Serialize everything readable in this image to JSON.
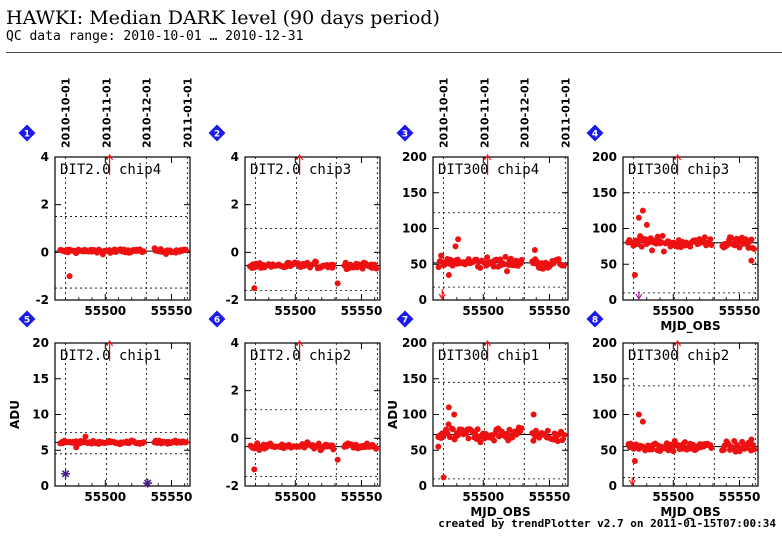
{
  "header": {
    "title": "HAWKI: Median DARK level (90 days period)",
    "subtitle": "QC data range: 2010-10-01 … 2010-12-31"
  },
  "footer": "created by trendPlotter v2.7 on 2011-01-15T07:00:34",
  "colors": {
    "points": "#ee1111",
    "badge": "#1a1aee",
    "marker_arrow": "#ee1111",
    "outlier_star": "#4b1a8c",
    "outlier_arrow": "#aa22aa"
  },
  "date_ticks": [
    {
      "label": "2010-10-01",
      "mjd": 55470
    },
    {
      "label": "2010-11-01",
      "mjd": 55501
    },
    {
      "label": "2010-12-01",
      "mjd": 55531
    },
    {
      "label": "2011-01-01",
      "mjd": 55562
    }
  ],
  "chart_data": [
    {
      "badge": "1",
      "type": "scatter",
      "label": "DIT2.0 chip4",
      "xlim": [
        55462,
        55564
      ],
      "ylim": [
        -2,
        4
      ],
      "yticks": [
        -2,
        0,
        2,
        4
      ],
      "xticks": [
        55500,
        55550
      ],
      "median": 0.05,
      "thresholds": [
        -1.5,
        1.5
      ],
      "xlabel": "",
      "ylabel": "",
      "level": 0.05,
      "noise": 0.09,
      "outliers": [
        {
          "x": 55473,
          "y": -1.0
        }
      ],
      "below_range": []
    },
    {
      "badge": "2",
      "type": "scatter",
      "label": "DIT2.0 chip3",
      "xlim": [
        55462,
        55564
      ],
      "ylim": [
        -2,
        4
      ],
      "yticks": [
        -2,
        0,
        2,
        4
      ],
      "xticks": [
        55500,
        55550
      ],
      "median": -0.55,
      "thresholds": [
        -1.6,
        1.0
      ],
      "xlabel": "",
      "ylabel": "",
      "level": -0.55,
      "noise": 0.12,
      "outliers": [
        {
          "x": 55469,
          "y": -1.5
        },
        {
          "x": 55532,
          "y": -1.3
        }
      ],
      "below_range": []
    },
    {
      "badge": "3",
      "type": "scatter",
      "label": "DIT300 chip4",
      "xlim": [
        55462,
        55564
      ],
      "ylim": [
        0,
        200
      ],
      "yticks": [
        0,
        50,
        100,
        150,
        200
      ],
      "xticks": [
        55500,
        55550
      ],
      "median": 52,
      "thresholds": [
        18,
        122
      ],
      "xlabel": "",
      "ylabel": "",
      "level": 52,
      "noise": 7,
      "outliers": [
        {
          "x": 55481,
          "y": 85
        },
        {
          "x": 55479,
          "y": 75
        },
        {
          "x": 55474,
          "y": 35
        },
        {
          "x": 55539,
          "y": 70
        }
      ],
      "below_range": [
        {
          "x": 55469,
          "y": 15
        }
      ]
    },
    {
      "badge": "4",
      "type": "scatter",
      "label": "DIT300 chip3",
      "xlim": [
        55462,
        55564
      ],
      "ylim": [
        0,
        200
      ],
      "yticks": [
        0,
        50,
        100,
        150,
        200
      ],
      "xticks": [
        55500,
        55550
      ],
      "median": 80,
      "thresholds": [
        10,
        150
      ],
      "xlabel": "MJD_OBS",
      "ylabel": "",
      "level": 80,
      "noise": 8,
      "outliers": [
        {
          "x": 55477,
          "y": 125
        },
        {
          "x": 55474,
          "y": 115
        },
        {
          "x": 55471,
          "y": 35
        },
        {
          "x": 55480,
          "y": 105
        },
        {
          "x": 55559,
          "y": 55
        }
      ],
      "below_range": [
        {
          "x": 55474,
          "y": 12
        }
      ]
    },
    {
      "badge": "5",
      "type": "scatter",
      "label": "DIT2.0 chip1",
      "xlim": [
        55462,
        55564
      ],
      "ylim": [
        0,
        20
      ],
      "yticks": [
        0,
        5,
        10,
        15,
        20
      ],
      "xticks": [
        55500,
        55550
      ],
      "median": 6.1,
      "thresholds": [
        4.5,
        7.5
      ],
      "xlabel": "",
      "ylabel": "ADU",
      "level": 6.1,
      "noise": 0.2,
      "outliers": [
        {
          "x": 55485,
          "y": 6.9
        },
        {
          "x": 55478,
          "y": 5.4
        }
      ],
      "stars": [
        {
          "x": 55470,
          "y": 1.7
        },
        {
          "x": 55532,
          "y": 0.4
        }
      ],
      "below_range": []
    },
    {
      "badge": "6",
      "type": "scatter",
      "label": "DIT2.0 chip2",
      "xlim": [
        55462,
        55564
      ],
      "ylim": [
        -2,
        4
      ],
      "yticks": [
        -2,
        0,
        2,
        4
      ],
      "xticks": [
        55500,
        55550
      ],
      "median": -0.35,
      "thresholds": [
        -1.6,
        1.2
      ],
      "xlabel": "",
      "ylabel": "",
      "level": -0.35,
      "noise": 0.13,
      "outliers": [
        {
          "x": 55469,
          "y": -1.3
        },
        {
          "x": 55532,
          "y": -0.9
        }
      ],
      "below_range": []
    },
    {
      "badge": "7",
      "type": "scatter",
      "label": "DIT300 chip1",
      "xlim": [
        55462,
        55564
      ],
      "ylim": [
        0,
        200
      ],
      "yticks": [
        0,
        50,
        100,
        150,
        200
      ],
      "xticks": [
        55500,
        55550
      ],
      "median": 72,
      "thresholds": [
        10,
        145
      ],
      "xlabel": "MJD_OBS",
      "ylabel": "ADU",
      "level": 72,
      "noise": 9,
      "outliers": [
        {
          "x": 55474,
          "y": 110
        },
        {
          "x": 55478,
          "y": 100
        },
        {
          "x": 55470,
          "y": 12
        },
        {
          "x": 55466,
          "y": 55
        },
        {
          "x": 55538,
          "y": 100
        }
      ],
      "below_range": []
    },
    {
      "badge": "8",
      "type": "scatter",
      "label": "DIT300 chip2",
      "xlim": [
        55462,
        55564
      ],
      "ylim": [
        0,
        200
      ],
      "yticks": [
        0,
        50,
        100,
        150,
        200
      ],
      "xticks": [
        55500,
        55550
      ],
      "median": 55,
      "thresholds": [
        12,
        140
      ],
      "xlabel": "MJD_OBS",
      "ylabel": "",
      "level": 55,
      "noise": 6,
      "outliers": [
        {
          "x": 55474,
          "y": 100
        },
        {
          "x": 55477,
          "y": 90
        },
        {
          "x": 55471,
          "y": 35
        },
        {
          "x": 55559,
          "y": 65
        }
      ],
      "below_range": [
        {
          "x": 55469,
          "y": 12
        }
      ]
    }
  ]
}
